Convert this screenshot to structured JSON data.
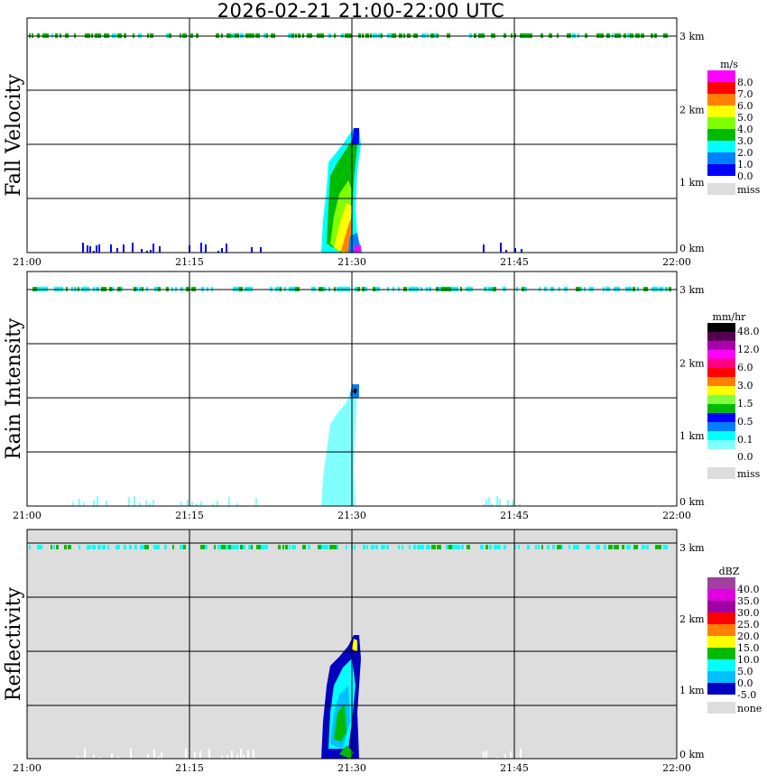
{
  "title": "2026-02-21   21:00-22:00 UTC",
  "chart_data": [
    {
      "type": "heatmap",
      "title": "Fall Velocity",
      "ylabel": "Fall Velocity",
      "x_ticks": [
        "21:00",
        "21:15",
        "21:30",
        "21:45",
        "22:00"
      ],
      "y_ticks": [
        "0 km",
        "1 km",
        "2 km",
        "3 km"
      ],
      "xlim": [
        "21:00",
        "22:00"
      ],
      "ylim_km": [
        0,
        3
      ],
      "grid": true,
      "background": "#ffffff",
      "colorbar": {
        "unit": "m/s",
        "labels": [
          "8.0",
          "7.0",
          "6.0",
          "5.0",
          "4.0",
          "3.0",
          "2.0",
          "1.0",
          "0.0"
        ],
        "colors": [
          "#ff00ff",
          "#ff0000",
          "#ff8000",
          "#ffff00",
          "#80ff00",
          "#00bb00",
          "#00ffff",
          "#0080ff",
          "#0000ff"
        ],
        "miss_label": "miss",
        "miss_color": "#dddddd"
      }
    },
    {
      "type": "heatmap",
      "title": "Rain Intensity",
      "ylabel": "Rain Intensity",
      "x_ticks": [
        "21:00",
        "21:15",
        "21:30",
        "21:45",
        "22:00"
      ],
      "y_ticks": [
        "0 km",
        "1 km",
        "2 km",
        "3 km"
      ],
      "xlim": [
        "21:00",
        "22:00"
      ],
      "ylim_km": [
        0,
        3
      ],
      "grid": true,
      "background": "#ffffff",
      "colorbar": {
        "unit": "mm/hr",
        "labels": [
          "48.0",
          "12.0",
          "6.0",
          "3.0",
          "1.5",
          "0.5",
          "0.1",
          "0.0"
        ],
        "colors": [
          "#000000",
          "#550055",
          "#aa00aa",
          "#ff00ff",
          "#ff0080",
          "#ff0000",
          "#ff8000",
          "#ffff00",
          "#80ff40",
          "#00bb00",
          "#0000ff",
          "#0080ff",
          "#00ffff",
          "#80ffff"
        ],
        "miss_label": "miss",
        "miss_color": "#dddddd"
      }
    },
    {
      "type": "heatmap",
      "title": "Reflectivity",
      "ylabel": "Reflectivity",
      "x_ticks": [
        "21:00",
        "21:15",
        "21:30",
        "21:45",
        "22:00"
      ],
      "y_ticks": [
        "0 km",
        "1 km",
        "2 km",
        "3 km"
      ],
      "xlim": [
        "21:00",
        "22:00"
      ],
      "ylim_km": [
        0,
        3
      ],
      "grid": true,
      "background": "#dddddd",
      "colorbar": {
        "unit": "dBZ",
        "labels": [
          "40.0",
          "35.0",
          "30.0",
          "25.0",
          "20.0",
          "15.0",
          "10.0",
          "5.0",
          "0.0",
          "-5.0"
        ],
        "colors": [
          "#a040a0",
          "#e000e0",
          "#a000a0",
          "#ff0000",
          "#ff8000",
          "#ffff00",
          "#00bb00",
          "#00ffff",
          "#00c0ff",
          "#0000c0"
        ],
        "miss_label": "none",
        "miss_color": "#dddddd"
      }
    }
  ]
}
